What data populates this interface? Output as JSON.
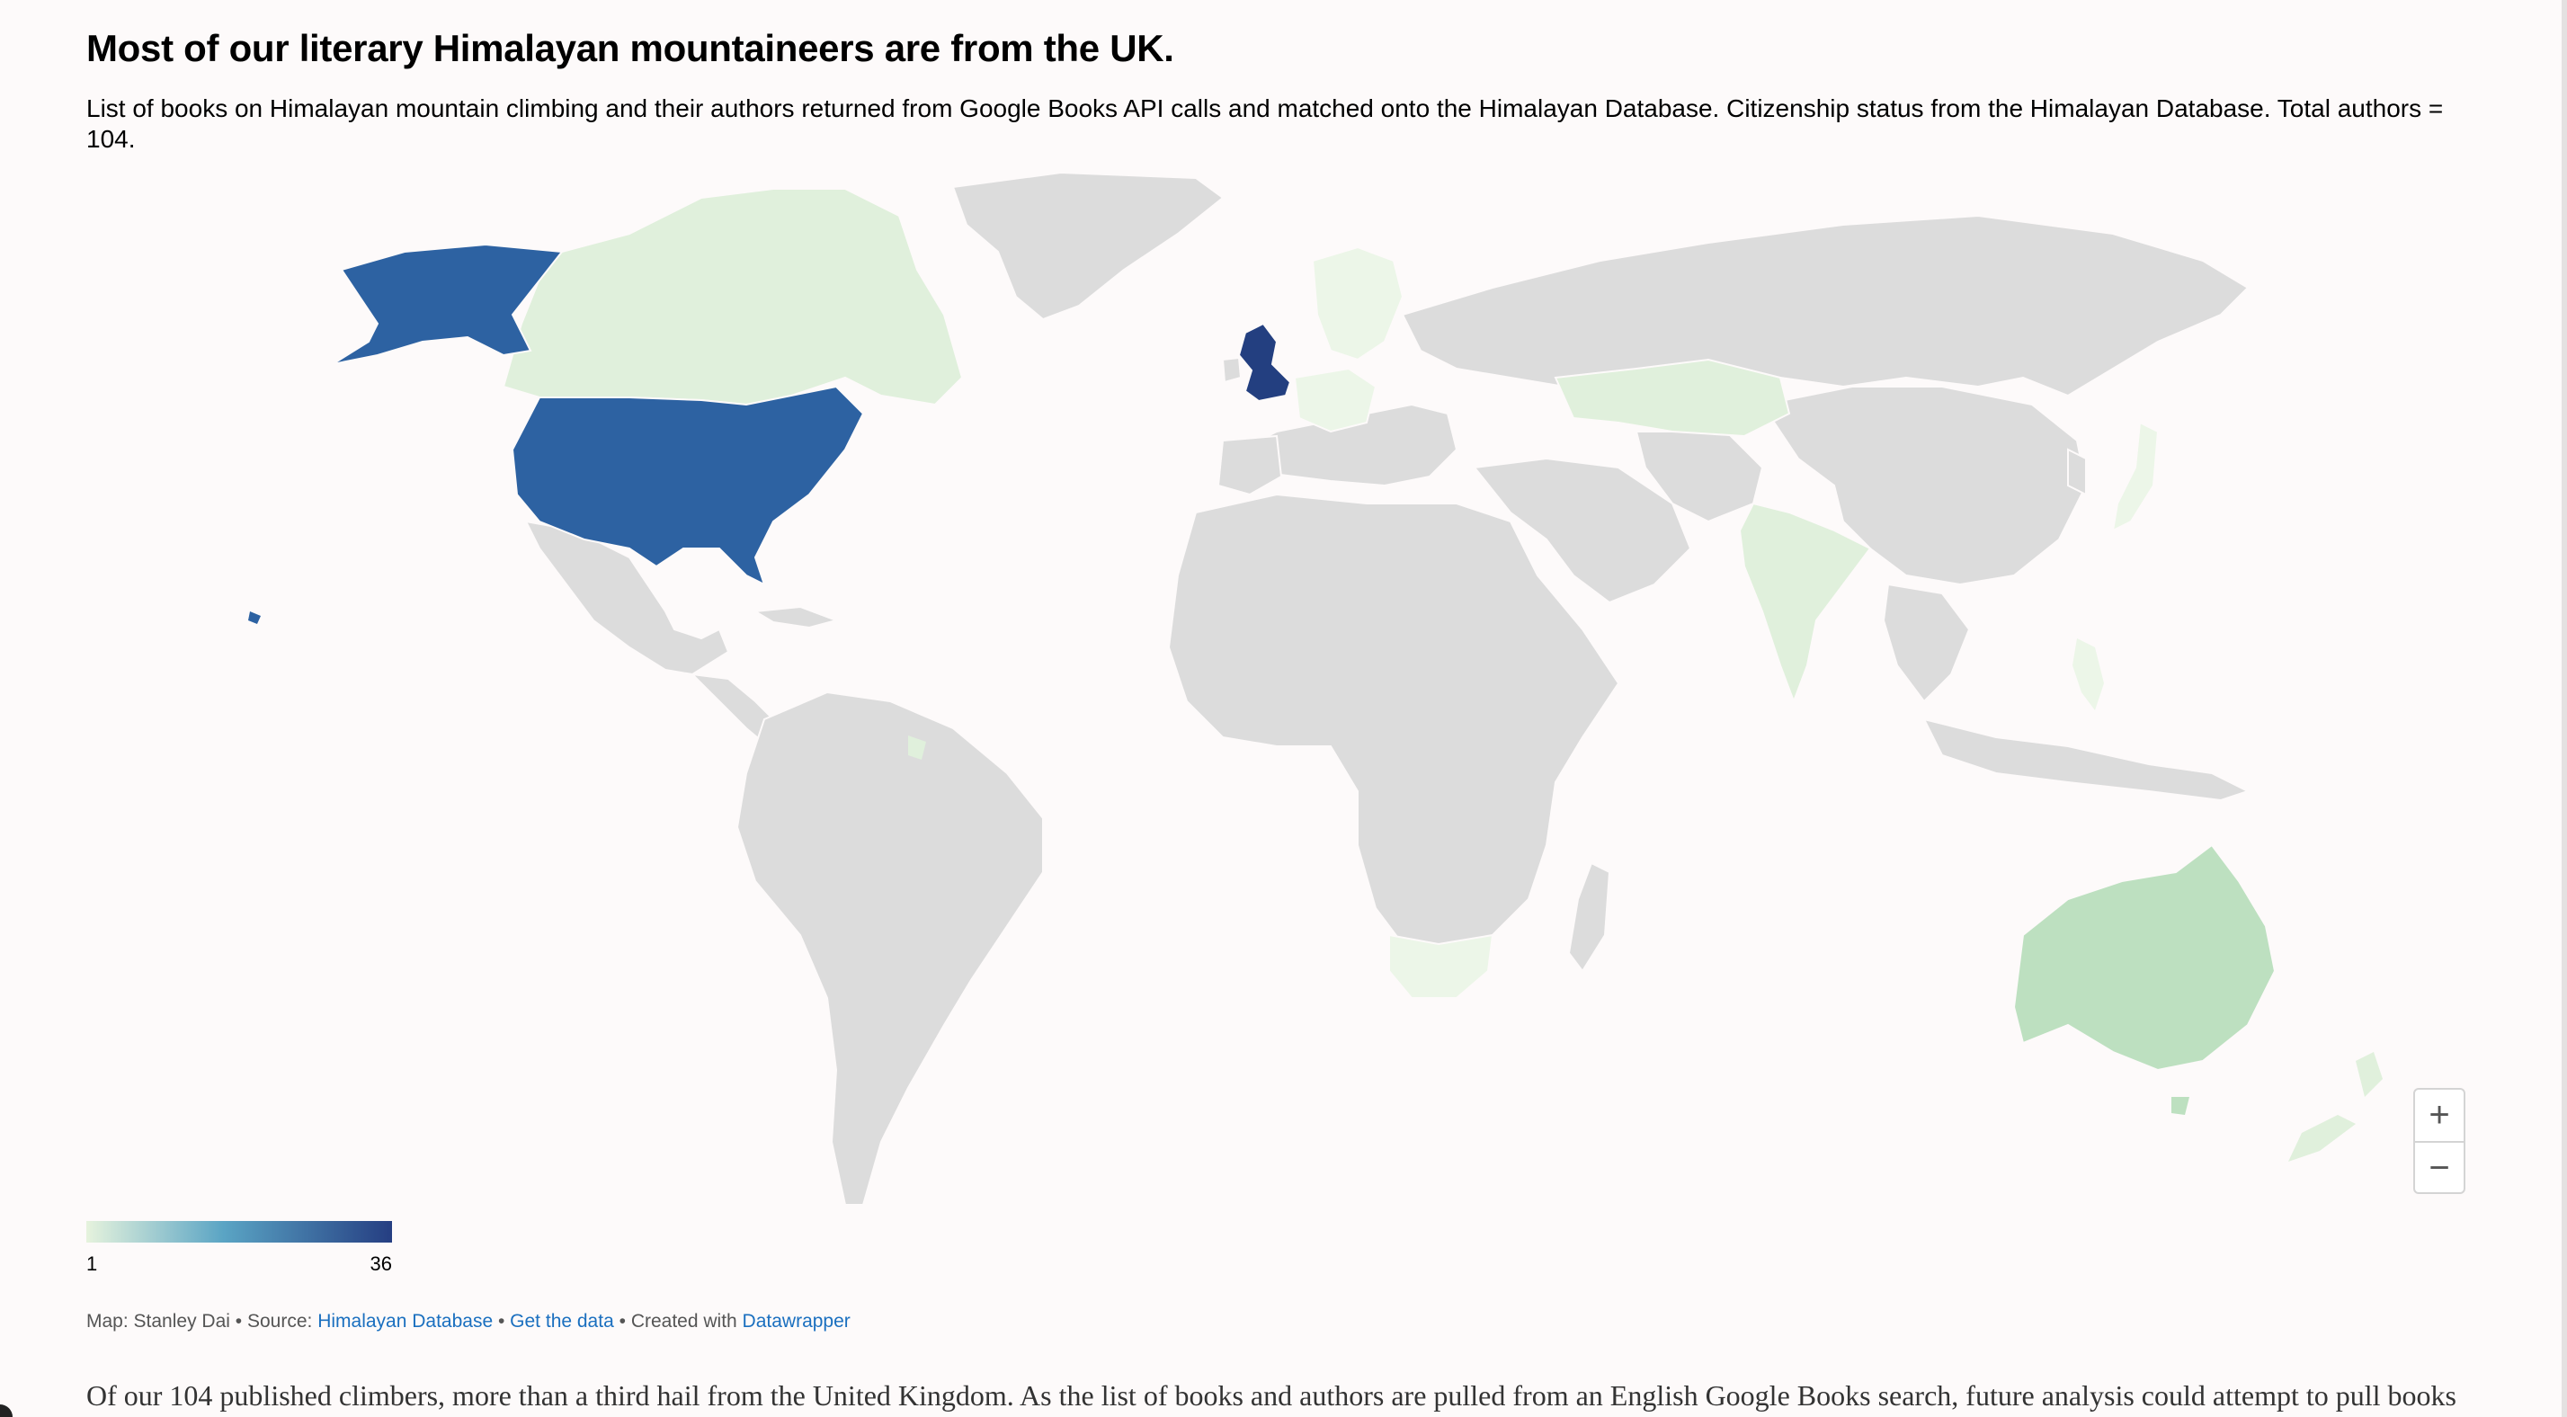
{
  "title": "Most of our literary Himalayan mountaineers are from the UK.",
  "description": "List of books on Himalayan mountain climbing and their authors returned from Google Books API calls and matched onto the Himalayan Database. Citizenship status from the Himalayan Database. Total authors = 104.",
  "legend": {
    "min": "1",
    "max": "36",
    "color_low": "#e6f3dd",
    "color_mid": "#5aa4c4",
    "color_high": "#253e82"
  },
  "zoom": {
    "in_label": "+",
    "out_label": "−"
  },
  "footer": {
    "map_credit": "Map: Stanley Dai",
    "source_prefix": "Source:",
    "source_link": "Himalayan Database",
    "get_data": "Get the data",
    "created_prefix": "Created with",
    "created_link": "Datawrapper",
    "separator": "•"
  },
  "body_text": "Of our 104 published climbers, more than a third hail from the United Kingdom. As the list of books and authors are pulled from an English Google Books search, future analysis could attempt to pull books",
  "colors": {
    "no_data": "#dcdcdc",
    "light": "#e0f0dc",
    "lighter": "#ecf6e8",
    "australia": "#bde0c0",
    "usa": "#2d62a2",
    "uk": "#233f80",
    "background": "#fdfafa"
  },
  "map_regions": [
    {
      "name": "United Kingdom",
      "shade": "uk"
    },
    {
      "name": "United States",
      "shade": "usa"
    },
    {
      "name": "Canada",
      "shade": "light"
    },
    {
      "name": "Australia",
      "shade": "australia"
    },
    {
      "name": "India",
      "shade": "light"
    },
    {
      "name": "Kazakhstan",
      "shade": "light"
    },
    {
      "name": "New Zealand",
      "shade": "light"
    },
    {
      "name": "Japan",
      "shade": "lighter"
    },
    {
      "name": "Philippines",
      "shade": "lighter"
    },
    {
      "name": "South Africa",
      "shade": "lighter"
    },
    {
      "name": "Sweden",
      "shade": "lighter"
    },
    {
      "name": "Germany",
      "shade": "lighter"
    }
  ]
}
